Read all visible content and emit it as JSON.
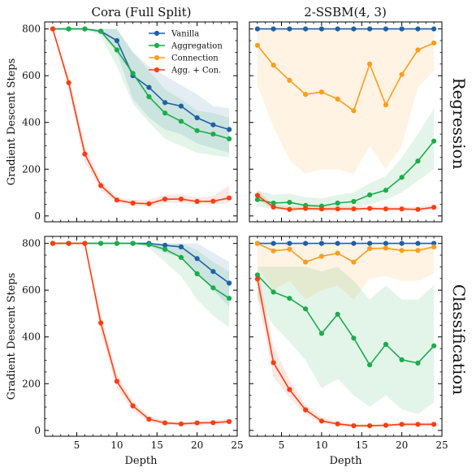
{
  "columns": [
    "Cora (Full Split)",
    "2-SSBM(4, 3)"
  ],
  "rows": [
    "Regression",
    "Classification"
  ],
  "colors": {
    "Vanilla": "#1f5fa8",
    "Aggregation": "#1aad4a",
    "Connection": "#ff9d1c",
    "Agg. + Con.": "#ff3d12"
  },
  "legend_placement": "top-right",
  "chart_data": [
    {
      "type": "line",
      "title": "Cora (Full Split)",
      "row_label": "Regression",
      "xlabel": "",
      "ylabel": "Gradient Descent Steps",
      "xlim": [
        1,
        25
      ],
      "ylim": [
        -25,
        830
      ],
      "xticks": [
        5,
        10,
        15,
        20,
        25
      ],
      "yticks": [
        0,
        200,
        400,
        600,
        800
      ],
      "x": [
        2,
        4,
        6,
        8,
        10,
        12,
        14,
        16,
        18,
        20,
        22,
        24
      ],
      "series": [
        {
          "name": "Vanilla",
          "values": [
            800,
            800,
            800,
            790,
            750,
            600,
            550,
            485,
            470,
            420,
            390,
            370
          ],
          "band_lower": [
            800,
            800,
            800,
            780,
            700,
            500,
            420,
            370,
            350,
            310,
            290,
            270
          ],
          "band_upper": [
            800,
            800,
            800,
            800,
            800,
            700,
            640,
            600,
            560,
            520,
            470,
            460
          ]
        },
        {
          "name": "Aggregation",
          "values": [
            800,
            800,
            800,
            790,
            710,
            610,
            510,
            440,
            405,
            365,
            350,
            330
          ],
          "band_lower": [
            800,
            800,
            800,
            770,
            640,
            480,
            400,
            330,
            300,
            270,
            260,
            250
          ],
          "band_upper": [
            800,
            800,
            800,
            800,
            800,
            700,
            620,
            540,
            500,
            450,
            440,
            420
          ]
        },
        {
          "name": "Agg. + Con.",
          "values": [
            800,
            570,
            265,
            130,
            68,
            55,
            52,
            72,
            72,
            62,
            63,
            77
          ],
          "band_lower": [
            800,
            540,
            230,
            110,
            55,
            45,
            40,
            55,
            55,
            50,
            50,
            55
          ],
          "band_upper": [
            800,
            600,
            300,
            150,
            80,
            70,
            70,
            90,
            92,
            78,
            85,
            130
          ]
        }
      ]
    },
    {
      "type": "line",
      "title": "2-SSBM(4, 3)",
      "row_label": "Regression",
      "xlabel": "",
      "ylabel": "",
      "xlim": [
        1,
        25
      ],
      "ylim": [
        -25,
        830
      ],
      "xticks": [
        5,
        10,
        15,
        20,
        25
      ],
      "yticks": [
        0,
        200,
        400,
        600,
        800
      ],
      "x": [
        2,
        4,
        6,
        8,
        10,
        12,
        14,
        16,
        18,
        20,
        22,
        24
      ],
      "series": [
        {
          "name": "Vanilla",
          "values": [
            800,
            800,
            800,
            800,
            800,
            800,
            800,
            800,
            800,
            800,
            800,
            800
          ],
          "band_lower": [
            800,
            800,
            800,
            800,
            800,
            800,
            800,
            800,
            800,
            800,
            800,
            800
          ],
          "band_upper": [
            800,
            800,
            800,
            800,
            800,
            800,
            800,
            800,
            800,
            800,
            800,
            800
          ]
        },
        {
          "name": "Connection",
          "values": [
            730,
            645,
            580,
            520,
            530,
            500,
            450,
            650,
            475,
            605,
            710,
            740
          ],
          "band_lower": [
            560,
            380,
            240,
            180,
            200,
            200,
            180,
            300,
            200,
            300,
            550,
            620
          ],
          "band_upper": [
            800,
            800,
            800,
            800,
            800,
            800,
            800,
            800,
            800,
            800,
            800,
            800
          ]
        },
        {
          "name": "Aggregation",
          "values": [
            70,
            55,
            58,
            45,
            42,
            55,
            62,
            90,
            110,
            165,
            235,
            320
          ],
          "band_lower": [
            40,
            30,
            30,
            25,
            20,
            30,
            35,
            50,
            70,
            100,
            150,
            200
          ],
          "band_upper": [
            110,
            90,
            95,
            80,
            75,
            90,
            100,
            140,
            170,
            250,
            350,
            460
          ]
        },
        {
          "name": "Agg. + Con.",
          "values": [
            88,
            38,
            28,
            32,
            30,
            30,
            30,
            32,
            30,
            30,
            28,
            37
          ],
          "band_lower": [
            70,
            30,
            20,
            25,
            22,
            22,
            22,
            24,
            22,
            22,
            20,
            28
          ],
          "band_upper": [
            110,
            50,
            40,
            42,
            40,
            40,
            40,
            42,
            40,
            40,
            38,
            50
          ]
        }
      ]
    },
    {
      "type": "line",
      "title": "",
      "row_label": "Classification",
      "xlabel": "Depth",
      "ylabel": "Gradient Descent Steps",
      "xlim": [
        1,
        25
      ],
      "ylim": [
        -25,
        830
      ],
      "xticks": [
        5,
        10,
        15,
        20,
        25
      ],
      "yticks": [
        0,
        200,
        400,
        600,
        800
      ],
      "x": [
        2,
        4,
        6,
        8,
        10,
        12,
        14,
        16,
        18,
        20,
        22,
        24
      ],
      "series": [
        {
          "name": "Vanilla",
          "values": [
            800,
            800,
            800,
            800,
            800,
            800,
            800,
            792,
            785,
            735,
            680,
            630
          ],
          "band_lower": [
            800,
            800,
            800,
            800,
            800,
            800,
            790,
            760,
            740,
            670,
            600,
            530
          ],
          "band_upper": [
            800,
            800,
            800,
            800,
            800,
            800,
            800,
            800,
            800,
            800,
            760,
            720
          ]
        },
        {
          "name": "Aggregation",
          "values": [
            800,
            800,
            800,
            800,
            800,
            800,
            795,
            775,
            740,
            670,
            610,
            565
          ],
          "band_lower": [
            800,
            800,
            800,
            800,
            800,
            800,
            780,
            720,
            660,
            560,
            490,
            440
          ],
          "band_upper": [
            800,
            800,
            800,
            800,
            800,
            800,
            800,
            800,
            800,
            770,
            720,
            680
          ]
        },
        {
          "name": "Agg. + Con.",
          "values": [
            800,
            800,
            800,
            460,
            210,
            105,
            48,
            32,
            28,
            32,
            33,
            38
          ],
          "band_lower": [
            800,
            800,
            800,
            420,
            180,
            85,
            35,
            24,
            20,
            24,
            25,
            28
          ],
          "band_upper": [
            800,
            800,
            800,
            500,
            240,
            125,
            62,
            42,
            36,
            40,
            42,
            48
          ]
        }
      ]
    },
    {
      "type": "line",
      "title": "",
      "row_label": "Classification",
      "xlabel": "Depth",
      "ylabel": "",
      "xlim": [
        1,
        25
      ],
      "ylim": [
        -25,
        830
      ],
      "xticks": [
        5,
        10,
        15,
        20,
        25
      ],
      "yticks": [
        0,
        200,
        400,
        600,
        800
      ],
      "x": [
        2,
        4,
        6,
        8,
        10,
        12,
        14,
        16,
        18,
        20,
        22,
        24
      ],
      "series": [
        {
          "name": "Vanilla",
          "values": [
            800,
            800,
            800,
            800,
            800,
            800,
            800,
            800,
            800,
            800,
            800,
            800
          ],
          "band_lower": [
            800,
            800,
            800,
            800,
            800,
            800,
            800,
            800,
            800,
            800,
            800,
            800
          ],
          "band_upper": [
            800,
            800,
            800,
            800,
            800,
            800,
            800,
            800,
            800,
            800,
            800,
            800
          ]
        },
        {
          "name": "Connection",
          "values": [
            800,
            768,
            775,
            720,
            745,
            758,
            720,
            778,
            780,
            770,
            770,
            785
          ],
          "band_lower": [
            700,
            600,
            640,
            560,
            600,
            620,
            560,
            650,
            660,
            640,
            640,
            670
          ],
          "band_upper": [
            800,
            800,
            800,
            800,
            800,
            800,
            800,
            800,
            800,
            800,
            800,
            800
          ]
        },
        {
          "name": "Aggregation",
          "values": [
            665,
            592,
            565,
            520,
            415,
            497,
            395,
            280,
            368,
            302,
            288,
            362
          ],
          "band_lower": [
            560,
            450,
            380,
            300,
            180,
            220,
            150,
            100,
            150,
            90,
            70,
            120
          ],
          "band_upper": [
            700,
            700,
            700,
            700,
            680,
            700,
            640,
            560,
            620,
            560,
            560,
            620
          ]
        },
        {
          "name": "Agg. + Con.",
          "values": [
            648,
            290,
            175,
            88,
            40,
            28,
            20,
            20,
            22,
            26,
            26,
            26
          ],
          "band_lower": [
            580,
            230,
            140,
            70,
            30,
            20,
            15,
            15,
            16,
            18,
            18,
            18
          ],
          "band_upper": [
            700,
            360,
            215,
            110,
            55,
            38,
            28,
            28,
            30,
            35,
            35,
            35
          ]
        }
      ]
    }
  ]
}
